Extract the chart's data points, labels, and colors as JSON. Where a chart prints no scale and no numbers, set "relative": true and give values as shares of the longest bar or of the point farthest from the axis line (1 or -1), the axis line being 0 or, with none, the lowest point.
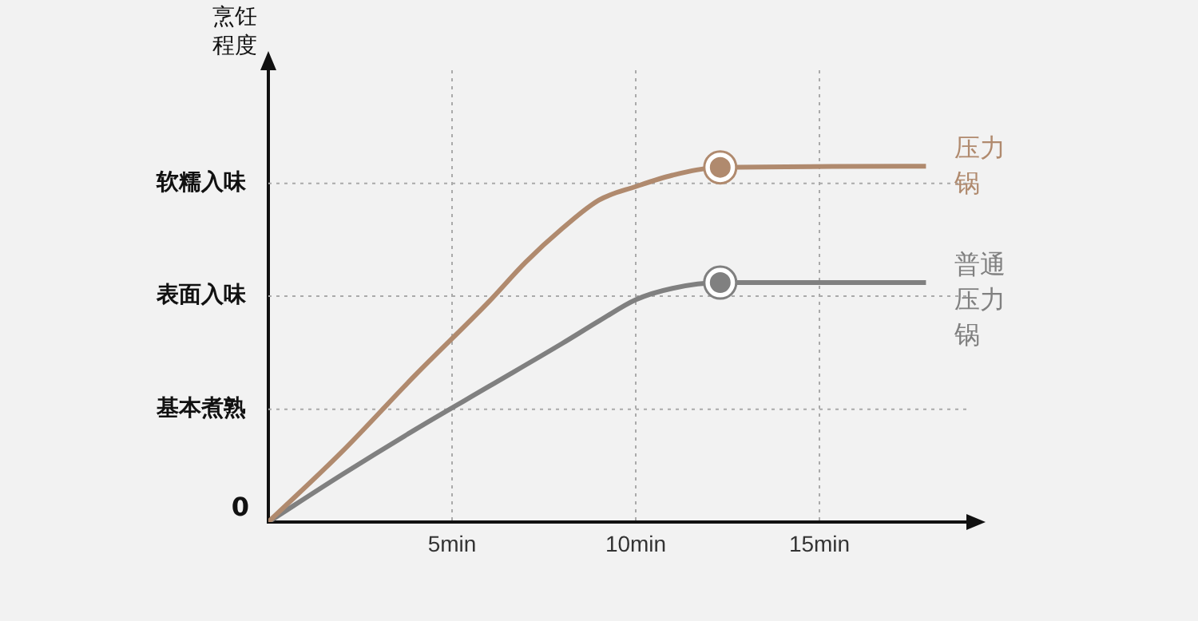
{
  "chart_data": {
    "type": "line",
    "ylabel": "烹饪程度",
    "relative": true,
    "xlim": [
      0,
      19
    ],
    "xticks": [
      {
        "value": 5,
        "label": "5min"
      },
      {
        "value": 10,
        "label": "10min"
      },
      {
        "value": 15,
        "label": "15min"
      }
    ],
    "grid": "x",
    "line_style": "solid",
    "annotations": [
      {
        "text": "0",
        "x": 0,
        "y": 0
      }
    ],
    "ref_lines": [
      {
        "axis": "y",
        "value": 0.317,
        "label": "基本煮熟"
      },
      {
        "axis": "y",
        "value": 0.635,
        "label": "表面入味"
      },
      {
        "axis": "y",
        "value": 0.952,
        "label": "软糯入味"
      }
    ],
    "series": [
      {
        "name": "压力锅",
        "color": "#b08a6e",
        "x": [
          0,
          2,
          4,
          6,
          7,
          8,
          9,
          10,
          11,
          12.3,
          17.9
        ],
        "values": [
          0,
          0.197,
          0.413,
          0.619,
          0.73,
          0.825,
          0.905,
          0.943,
          0.975,
          0.997,
          1
        ]
      },
      {
        "name": "普通压力锅",
        "color": "#808080",
        "x": [
          0,
          2,
          4,
          6,
          8,
          9,
          10,
          11,
          12.3,
          17.9
        ],
        "values": [
          0,
          0.133,
          0.26,
          0.381,
          0.502,
          0.565,
          0.625,
          0.657,
          0.673,
          0.673
        ]
      },
      {
        "type": "scatter",
        "marker": "circle",
        "color": "#b08a6e",
        "x": [
          12.3
        ],
        "values": [
          0.997
        ]
      },
      {
        "type": "scatter",
        "marker": "circle",
        "color": "#808080",
        "x": [
          12.3
        ],
        "values": [
          0.673
        ]
      }
    ]
  }
}
